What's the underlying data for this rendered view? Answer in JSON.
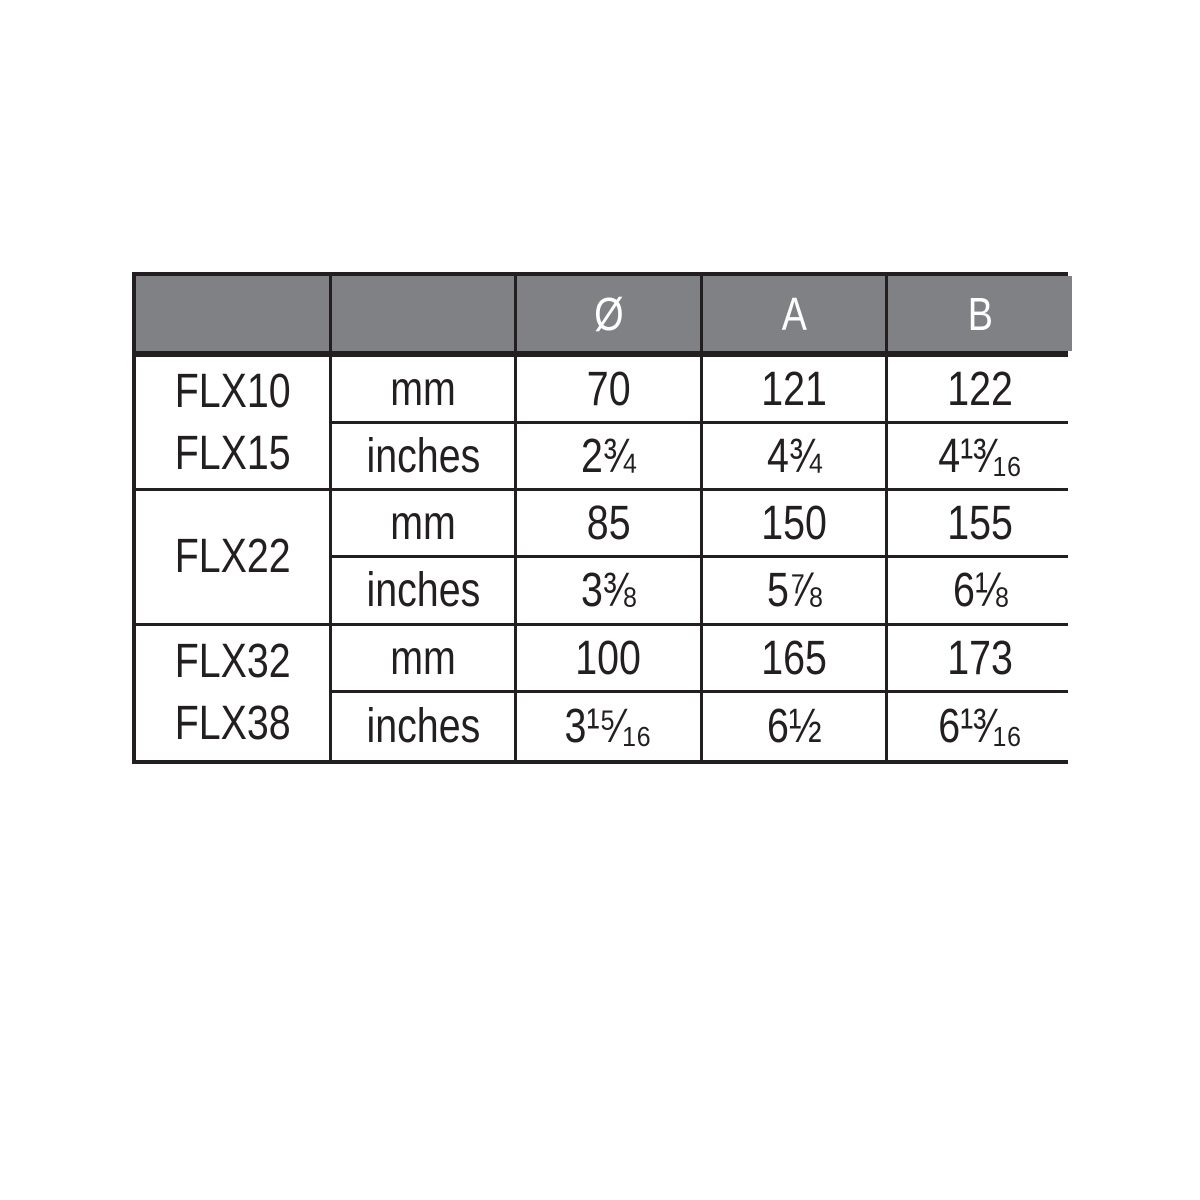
{
  "table": {
    "header": [
      "",
      "",
      "Ø",
      "A",
      "B"
    ],
    "groups": [
      {
        "models": [
          "FLX10",
          "FLX15"
        ],
        "rows": [
          {
            "unit": "mm",
            "values": [
              "70",
              "121",
              "122"
            ]
          },
          {
            "unit": "inches",
            "values": [
              "2¾",
              "4¾",
              "4¹³⁄₁₆"
            ]
          }
        ]
      },
      {
        "models": [
          "FLX22"
        ],
        "rows": [
          {
            "unit": "mm",
            "values": [
              "85",
              "150",
              "155"
            ]
          },
          {
            "unit": "inches",
            "values": [
              "3⅜",
              "5⅞",
              "6⅛"
            ]
          }
        ]
      },
      {
        "models": [
          "FLX32",
          "FLX38"
        ],
        "rows": [
          {
            "unit": "mm",
            "values": [
              "100",
              "165",
              "173"
            ]
          },
          {
            "unit": "inches",
            "values": [
              "3¹⁵⁄₁₆",
              "6½",
              "6¹³⁄₁₆"
            ]
          }
        ]
      }
    ],
    "colors": {
      "header_bg": "#808184",
      "border": "#231f20"
    }
  }
}
